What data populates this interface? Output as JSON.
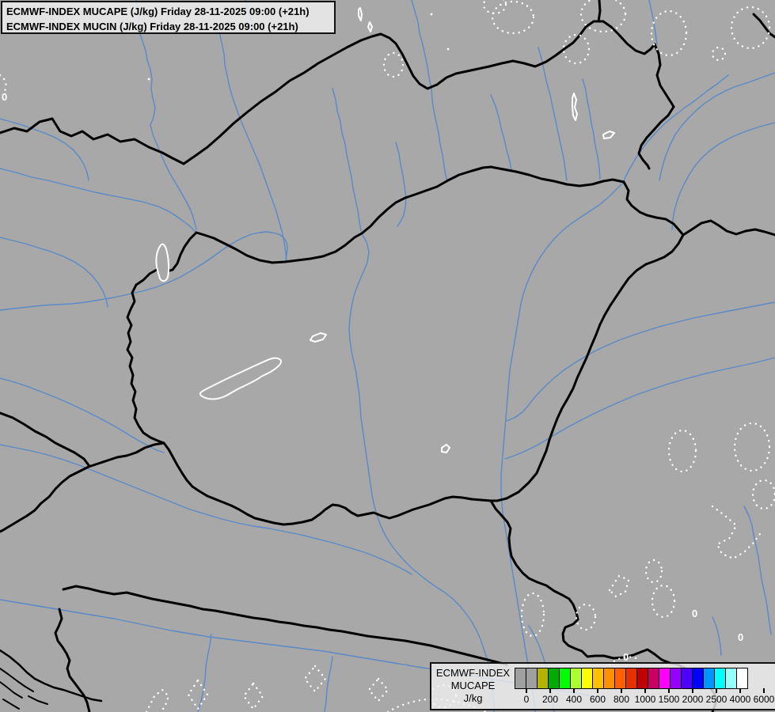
{
  "header": {
    "line1": "ECMWF-INDEX MUCAPE (J/kg) Friday 28-11-2025 09:00 (+21h)",
    "line2": "ECMWF-INDEX MUCIN (J/kg) Friday 28-11-2025 09:00 (+21h)"
  },
  "legend": {
    "title_line1": "ECMWF-INDEX",
    "title_line2": "MUCAPE",
    "units": "J/kg",
    "tick_labels": [
      "0",
      "200",
      "400",
      "600",
      "800",
      "1000",
      "1500",
      "2000",
      "2500",
      "4000",
      "6000"
    ],
    "colors": [
      "#a0a0a0",
      "#a0a0a0",
      "#b4b400",
      "#00aa00",
      "#00ff00",
      "#adff2f",
      "#ffff00",
      "#ffc000",
      "#ff9000",
      "#ff6000",
      "#e63000",
      "#c00000",
      "#c80064",
      "#ff00ff",
      "#9600ff",
      "#5000ff",
      "#0000ff",
      "#0096ff",
      "#00ffff",
      "#96ffff",
      "#ffffff"
    ]
  },
  "map": {
    "background_color": "#a8a8a8",
    "border_color": "#000000",
    "river_color": "#5a8ac8",
    "lake_color": "#ffffff",
    "contour_color": "#ffffff",
    "contour_label": "0"
  }
}
